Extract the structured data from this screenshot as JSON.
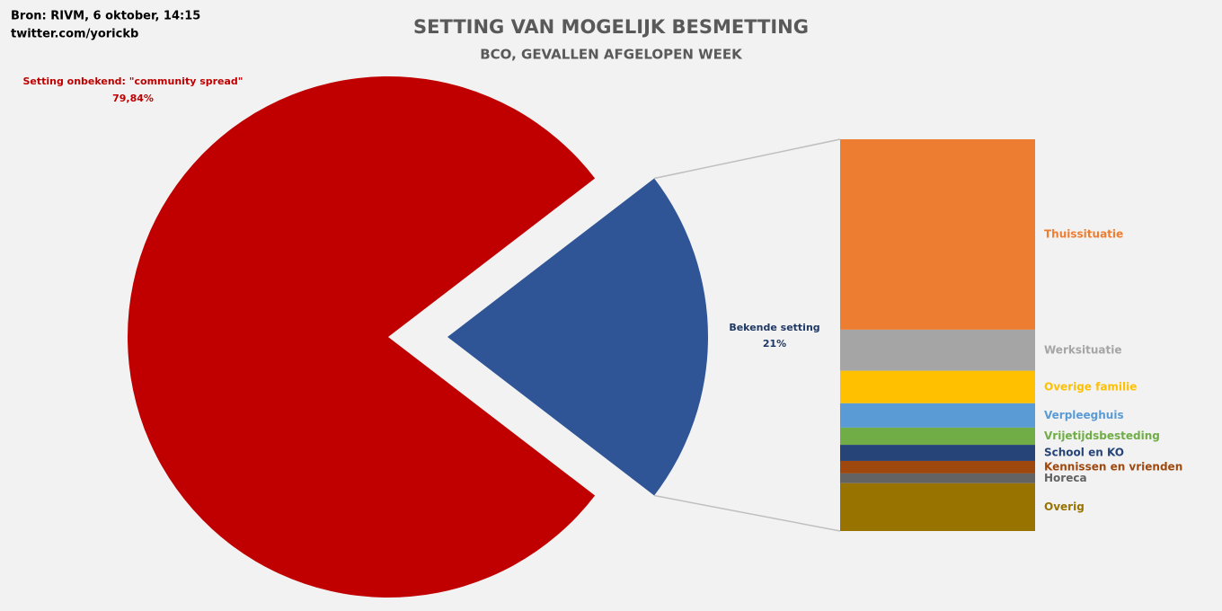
{
  "chart_data": [
    {
      "type": "pie",
      "title": "SETTING VAN MOGELIJK BESMETTING",
      "subtitle": "BCO, GEVALLEN AFGELOPEN WEEK",
      "source": [
        "Bron: RIVM, 6 oktober, 14:15",
        "twitter.com/yorickb"
      ],
      "categories": [
        "Setting onbekend: \"community spread\"",
        "Bekende setting"
      ],
      "values": [
        79.84,
        21
      ],
      "value_labels": [
        "79,84%",
        "21%"
      ],
      "colors": [
        "#c00000",
        "#2f5597"
      ],
      "label_colors": [
        "#c00000",
        "#1f3864"
      ]
    },
    {
      "type": "bar",
      "categories": [
        "Thuissituatie",
        "Werksituatie",
        "Overige familie",
        "Verpleeghuis",
        "Vrijetijdsbesteding",
        "School  en KO",
        "Kennissen en vrienden",
        "Horeca",
        "Overig"
      ],
      "values": [
        48.6,
        10.5,
        8.3,
        6.2,
        4.4,
        4.1,
        3.2,
        2.5,
        12.2
      ],
      "colors": [
        "#ed7d31",
        "#a5a5a5",
        "#ffc000",
        "#5b9bd5",
        "#70ad47",
        "#264478",
        "#9e480e",
        "#636363",
        "#997300"
      ]
    }
  ]
}
